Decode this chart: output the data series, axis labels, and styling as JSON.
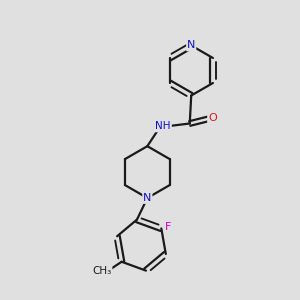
{
  "background_color": "#e0e0e0",
  "bond_color": "#1a1a1a",
  "atom_colors": {
    "N": "#1010cc",
    "O": "#cc2020",
    "F": "#cc00bb",
    "C": "#1a1a1a",
    "H": "#1a1a1a"
  },
  "figsize": [
    3.0,
    3.0
  ],
  "dpi": 100
}
